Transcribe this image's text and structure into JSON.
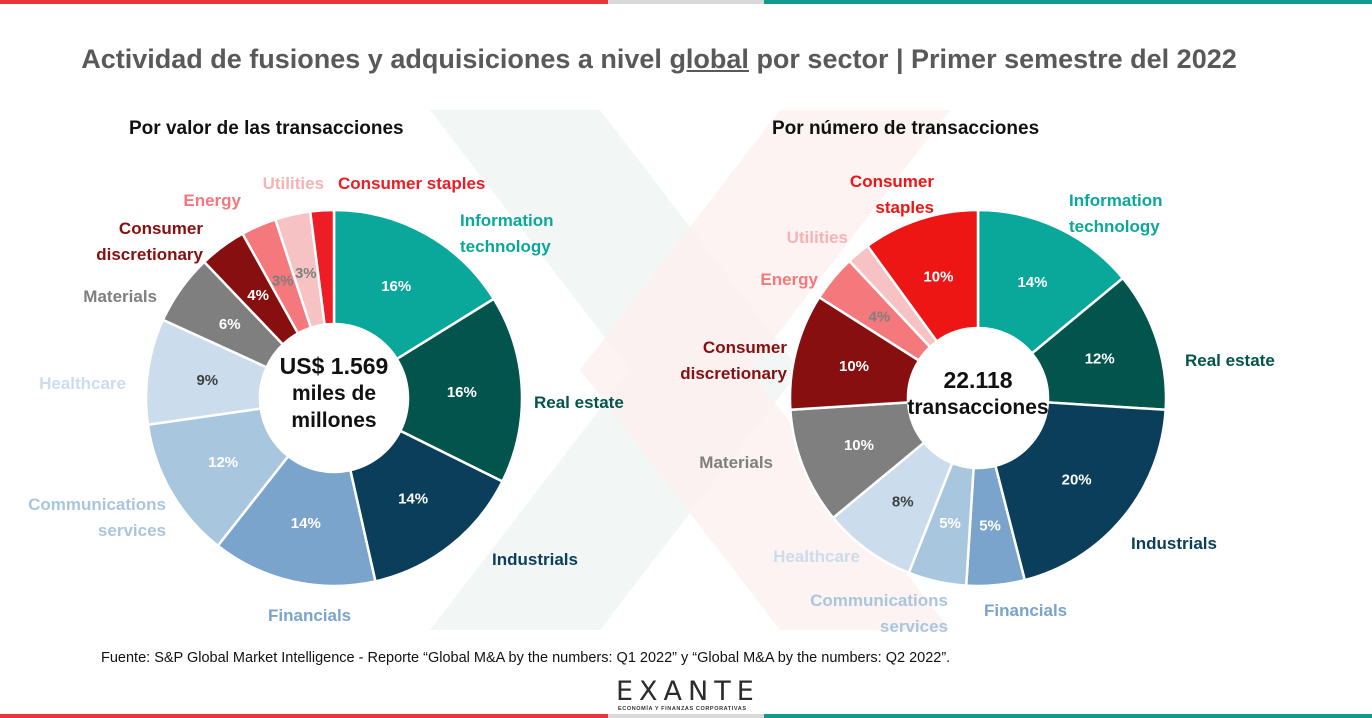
{
  "title": {
    "before": "Actividad de fusiones y adquisiciones a nivel ",
    "underlined": "global",
    "after": " por sector | Primer semestre del 2022"
  },
  "source": "Fuente: S&P Global Market Intelligence - Reporte “Global M&A by the numbers: Q1 2022” y “Global M&A by the numbers: Q2 2022”.",
  "logo": {
    "word": "EXANTE",
    "tagline": "ECONOMÍA Y FINANZAS CORPORATIVAS"
  },
  "colors": {
    "top_bar_left": "#e8343a",
    "top_bar_right": "#139a8f",
    "watermark": "#f7f2f2"
  },
  "chart_data": [
    {
      "type": "pie",
      "subtitle": "Por valor de las transacciones",
      "center_lines": [
        "US$ 1.569",
        "miles de",
        "millones"
      ],
      "slices": [
        {
          "label": "Information technology",
          "value": 16,
          "display": "16%",
          "color": "#0aa89b",
          "label_color": "#0aa89b",
          "value_color": "#ffffff"
        },
        {
          "label": "Real estate",
          "value": 16,
          "display": "16%",
          "color": "#02544c",
          "label_color": "#02544c",
          "value_color": "#ffffff"
        },
        {
          "label": "Industrials",
          "value": 14,
          "display": "14%",
          "color": "#0b3e5a",
          "label_color": "#0b3e5a",
          "value_color": "#ffffff"
        },
        {
          "label": "Financials",
          "value": 14,
          "display": "14%",
          "color": "#7aa4cc",
          "label_color": "#7aa4cc",
          "value_color": "#ffffff"
        },
        {
          "label": "Communications services",
          "value": 12,
          "display": "12%",
          "color": "#a9c6df",
          "label_color": "#a9c6df",
          "value_color": "#ffffff"
        },
        {
          "label": "Healthcare",
          "value": 9,
          "display": "9%",
          "color": "#cbdced",
          "label_color": "#cbdced",
          "value_color": "#404040"
        },
        {
          "label": "Materials",
          "value": 6,
          "display": "6%",
          "color": "#7f7f7f",
          "label_color": "#7f7f7f",
          "value_color": "#ffffff"
        },
        {
          "label": "Consumer discretionary",
          "value": 4,
          "display": "4%",
          "color": "#870f0f",
          "label_color": "#870f0f",
          "value_color": "#ffffff"
        },
        {
          "label": "Energy",
          "value": 3,
          "display": "3%",
          "color": "#f4787c",
          "label_color": "#f4787c",
          "value_color": "#7f7f7f"
        },
        {
          "label": "Utilities",
          "value": 3,
          "display": "3%",
          "color": "#f7c2c4",
          "label_color": "#f7b2b5",
          "value_color": "#7f7f7f"
        },
        {
          "label": "Consumer  staples",
          "value": 2,
          "display": "",
          "color": "#ee1c24",
          "label_color": "#ee1c24",
          "value_color": "#ffffff"
        }
      ]
    },
    {
      "type": "pie",
      "subtitle": "Por número de transacciones",
      "center_lines": [
        "22.118",
        "transacciones"
      ],
      "slices": [
        {
          "label": "Information technology",
          "value": 14,
          "display": "14%",
          "color": "#0aa89b",
          "label_color": "#0aa89b",
          "value_color": "#ffffff"
        },
        {
          "label": "Real estate",
          "value": 12,
          "display": "12%",
          "color": "#02544c",
          "label_color": "#02544c",
          "value_color": "#ffffff"
        },
        {
          "label": "Industrials",
          "value": 20,
          "display": "20%",
          "color": "#0b3e5a",
          "label_color": "#0b3e5a",
          "value_color": "#ffffff"
        },
        {
          "label": "Financials",
          "value": 5,
          "display": "5%",
          "color": "#7aa4cc",
          "label_color": "#7aa4cc",
          "value_color": "#ffffff"
        },
        {
          "label": "Communications services",
          "value": 5,
          "display": "5%",
          "color": "#a9c6df",
          "label_color": "#a9c6df",
          "value_color": "#ffffff"
        },
        {
          "label": "Healthcare",
          "value": 8,
          "display": "8%",
          "color": "#cbdced",
          "label_color": "#cbdced",
          "value_color": "#404040"
        },
        {
          "label": "Materials",
          "value": 10,
          "display": "10%",
          "color": "#7f7f7f",
          "label_color": "#7f7f7f",
          "value_color": "#ffffff"
        },
        {
          "label": "Consumer discretionary",
          "value": 10,
          "display": "10%",
          "color": "#870f0f",
          "label_color": "#870f0f",
          "value_color": "#ffffff"
        },
        {
          "label": "Energy",
          "value": 4,
          "display": "4%",
          "color": "#f4787c",
          "label_color": "#f4787c",
          "value_color": "#7f7f7f"
        },
        {
          "label": "Utilities",
          "value": 2,
          "display": "",
          "color": "#f7c2c4",
          "label_color": "#f7b2b5",
          "value_color": "#7f7f7f"
        },
        {
          "label": "Consumer staples",
          "value": 10,
          "display": "10%",
          "color": "#ee1515",
          "label_color": "#ee1515",
          "value_color": "#ffffff"
        }
      ]
    }
  ]
}
